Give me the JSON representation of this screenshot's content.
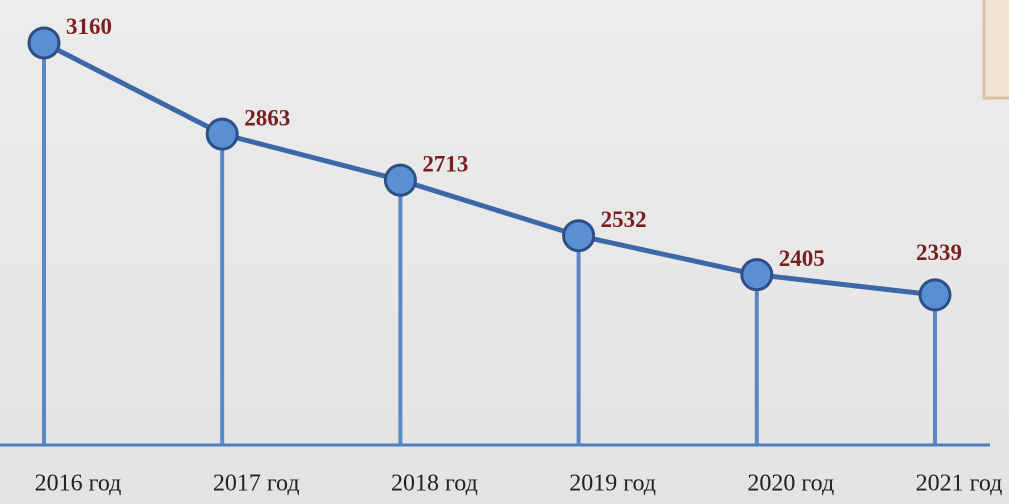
{
  "chart_data": {
    "type": "line",
    "categories": [
      "2016 год",
      "2017 год",
      "2018 год",
      "2019 год",
      "2020 год",
      "2021 год"
    ],
    "values": [
      3160,
      2863,
      2713,
      2532,
      2405,
      2339
    ],
    "color": "#3d68a8",
    "ylim": [
      1850,
      3300
    ]
  }
}
